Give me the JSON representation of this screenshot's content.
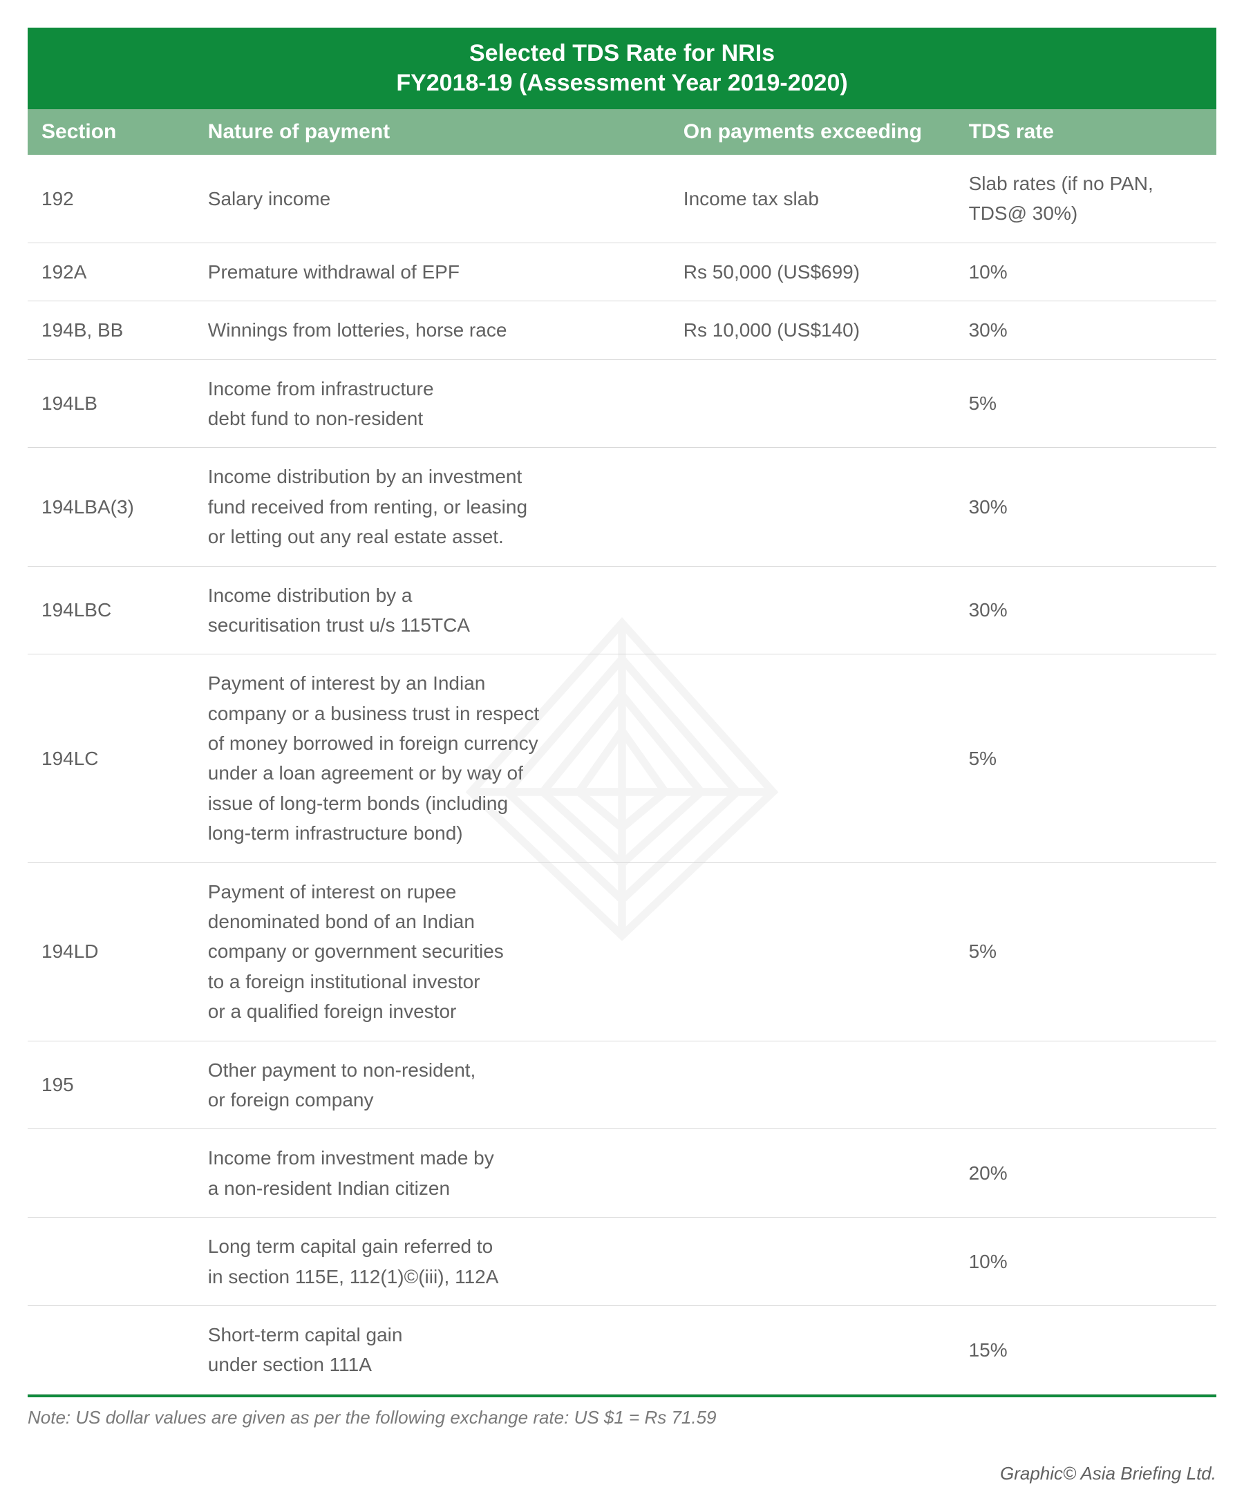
{
  "title": "Selected TDS Rate for NRIs",
  "subtitle": "FY2018-19 (Assessment Year 2019-2020)",
  "columns": [
    "Section",
    "Nature of payment",
    "On payments exceeding",
    "TDS rate"
  ],
  "rows": [
    {
      "section": "192",
      "nature": "Salary income",
      "threshold": "Income tax slab",
      "rate": "Slab rates (if no PAN, TDS@ 30%)"
    },
    {
      "section": "192A",
      "nature": "Premature withdrawal of EPF",
      "threshold": "Rs 50,000 (US$699)",
      "rate": "10%"
    },
    {
      "section": "194B, BB",
      "nature": "Winnings from lotteries, horse race",
      "threshold": "Rs 10,000 (US$140)",
      "rate": "30%"
    },
    {
      "section": "194LB",
      "nature": "Income from infrastructure\ndebt fund to non-resident",
      "threshold": "",
      "rate": "5%"
    },
    {
      "section": "194LBA(3)",
      "nature": "Income distribution by an investment\nfund received from renting, or leasing\nor letting out any real estate asset.",
      "threshold": "",
      "rate": "30%"
    },
    {
      "section": "194LBC",
      "nature": "Income distribution by a\nsecuritisation trust u/s 115TCA",
      "threshold": "",
      "rate": "30%"
    },
    {
      "section": "194LC",
      "nature": "Payment of interest by an Indian\ncompany or a business trust in respect\nof money borrowed in foreign currency\nunder a loan agreement or by way of\nissue of long-term bonds (including\nlong-term infrastructure bond)",
      "threshold": "",
      "rate": "5%"
    },
    {
      "section": "194LD",
      "nature": "Payment of interest on rupee\ndenominated bond of an Indian\ncompany or government securities\nto a foreign institutional investor\nor a qualified foreign investor",
      "threshold": "",
      "rate": "5%"
    },
    {
      "section": "195",
      "nature": "Other payment to non-resident,\nor foreign company",
      "threshold": "",
      "rate": ""
    },
    {
      "section": "",
      "nature": "Income from investment made by\na non-resident Indian citizen",
      "threshold": "",
      "rate": "20%"
    },
    {
      "section": "",
      "nature": "Long term capital gain referred to\nin section 115E, 112(1)©(iii), 112A",
      "threshold": "",
      "rate": "10%"
    },
    {
      "section": "",
      "nature": "Short-term capital gain\nunder section 111A",
      "threshold": "",
      "rate": "15%"
    }
  ],
  "note": "Note: US dollar values are given as per the following exchange rate: US $1 = Rs 71.59",
  "credit": "Graphic© Asia Briefing Ltd.",
  "styling": {
    "title_bg": "#0f8b3c",
    "header_bg": "#7fb58e",
    "text_color": "#616161",
    "border_color": "#d9d9d9",
    "bottom_border_color": "#0f8b3c",
    "title_fontsize": 34,
    "header_fontsize": 30,
    "cell_fontsize": 28,
    "note_fontsize": 26,
    "background_color": "#ffffff",
    "watermark_opacity": 0.06
  }
}
